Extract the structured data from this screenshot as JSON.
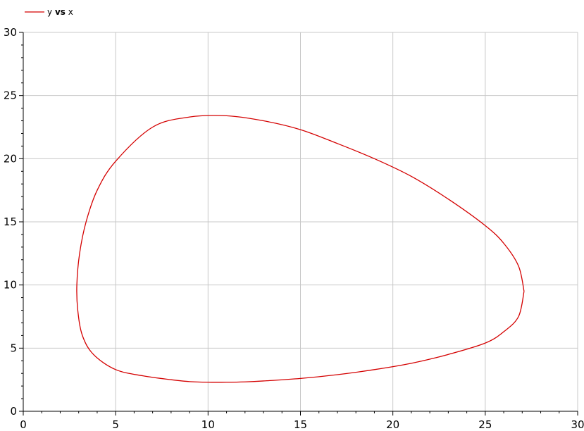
{
  "chart_data": {
    "type": "line",
    "title": "",
    "xlabel": "",
    "ylabel": "",
    "xlim": [
      0,
      30
    ],
    "ylim": [
      0,
      30
    ],
    "xticks": [
      "0",
      "5",
      "10",
      "15",
      "20",
      "25",
      "30"
    ],
    "yticks": [
      "0",
      "5",
      "10",
      "15",
      "20",
      "25",
      "30"
    ],
    "grid": true,
    "legend_placement": "top-left",
    "legend": {
      "y_part": "y",
      "vs_part": "vs",
      "x_part": "x"
    },
    "series": [
      {
        "name": "y vs x",
        "color": "#d40000",
        "x": [
          27.1,
          26.8,
          26.0,
          25.0,
          23.0,
          21.0,
          19.0,
          17.0,
          15.0,
          13.0,
          11.0,
          9.0,
          7.0,
          5.0,
          4.0,
          3.4,
          3.05,
          2.9,
          2.95,
          3.2,
          3.8,
          5.0,
          6.5,
          8.0,
          9.0,
          10.0,
          11.0,
          12.0,
          13.0,
          15.0,
          17.0,
          19.0,
          21.0,
          23.0,
          25.0,
          26.0,
          26.8,
          27.1
        ],
        "y": [
          9.5,
          11.5,
          13.3,
          14.7,
          16.8,
          18.6,
          20.0,
          21.2,
          22.3,
          23.0,
          23.4,
          23.3,
          22.5,
          19.8,
          17.5,
          15.0,
          12.5,
          10.0,
          8.0,
          6.0,
          4.5,
          3.3,
          2.8,
          2.5,
          2.35,
          2.3,
          2.3,
          2.33,
          2.4,
          2.6,
          2.9,
          3.3,
          3.8,
          4.5,
          5.4,
          6.3,
          7.5,
          9.5
        ]
      }
    ]
  }
}
